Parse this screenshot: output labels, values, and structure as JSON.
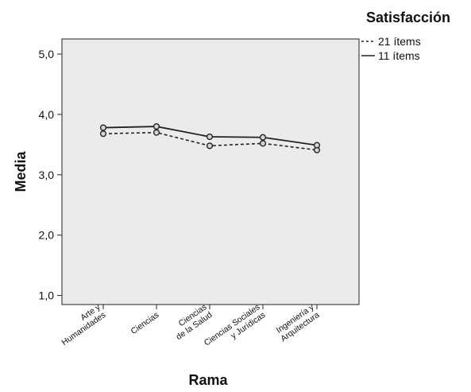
{
  "chart_data": {
    "type": "line",
    "title": "",
    "xlabel": "Rama",
    "ylabel": "Media",
    "categories": [
      [
        "Arte y",
        "Humanidades"
      ],
      [
        "Ciencias"
      ],
      [
        "Ciencias",
        "de la Salud"
      ],
      [
        "Ciencias Sociales",
        "y Jurídicas"
      ],
      [
        "Ingeniería y",
        "Arquitectura"
      ]
    ],
    "yticks": [
      "1,0",
      "2,0",
      "3,0",
      "4,0",
      "5,0"
    ],
    "ylim": [
      0.85,
      5.25
    ],
    "grid": false,
    "legend": {
      "title": "Satisfacción",
      "position": "top-right",
      "outside_plot": true
    },
    "series": [
      {
        "name": "21 ítems",
        "line_style": "dashed",
        "marker": "circle",
        "color": "#222222",
        "values": [
          3.68,
          3.7,
          3.48,
          3.52,
          3.41
        ]
      },
      {
        "name": "11 ítems",
        "line_style": "solid",
        "marker": "circle",
        "color": "#222222",
        "values": [
          3.78,
          3.8,
          3.63,
          3.62,
          3.49
        ]
      }
    ],
    "plot_background": "#ebebeb"
  }
}
